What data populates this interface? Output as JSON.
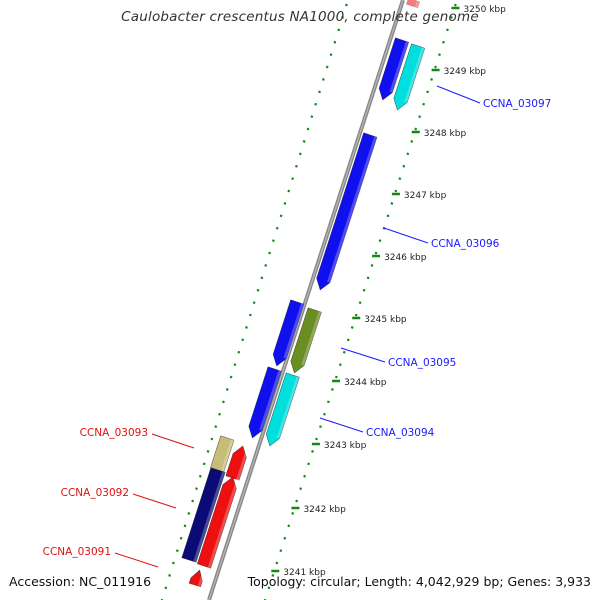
{
  "title": "Caulobacter crescentus NA1000, complete genome",
  "footer": {
    "accession": "Accession: NC_011916",
    "summary": "Topology: circular; Length: 4,042,929 bp; Genes: 3,933"
  },
  "ticks": [
    "3250 kbp",
    "3249 kbp",
    "3248 kbp",
    "3247 kbp",
    "3246 kbp",
    "3245 kbp",
    "3244 kbp",
    "3243 kbp",
    "3242 kbp",
    "3241 kbp"
  ],
  "gene_labels": [
    {
      "name": "CCNA_03097",
      "strand": "forward"
    },
    {
      "name": "CCNA_03096",
      "strand": "forward"
    },
    {
      "name": "CCNA_03095",
      "strand": "forward"
    },
    {
      "name": "CCNA_03094",
      "strand": "forward"
    },
    {
      "name": "CCNA_03093",
      "strand": "reverse"
    },
    {
      "name": "CCNA_03092",
      "strand": "reverse"
    },
    {
      "name": "CCNA_03091",
      "strand": "reverse"
    }
  ],
  "colors": {
    "forward_label": "#1a1aff",
    "reverse_label": "#e01010",
    "blue": "#1010ee",
    "cyan": "#00dede",
    "olive": "#6b8e23",
    "khaki": "#c8bd78",
    "navy": "#0b0b78",
    "red": "#ee1010",
    "backbone": "#888888",
    "dots": "#118811"
  }
}
